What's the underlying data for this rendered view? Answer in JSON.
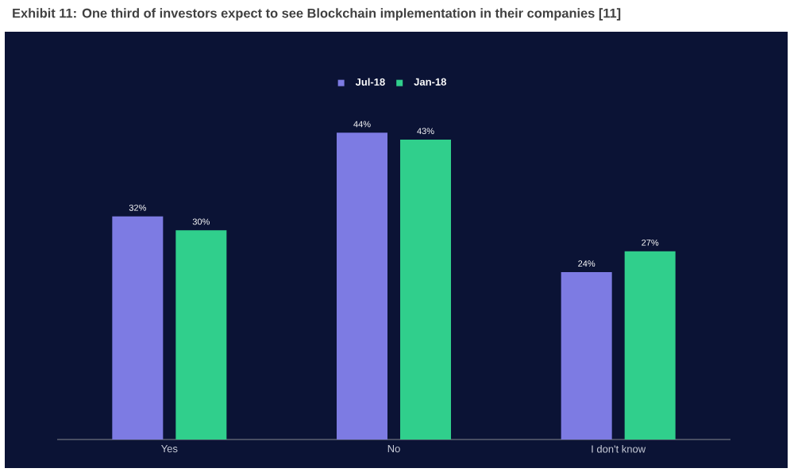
{
  "chart_data": {
    "type": "bar",
    "title": "Exhibit 11: One third of investors expect to see Blockchain implementation in their companies [11]",
    "categories": [
      "Yes",
      "No",
      "I don't know"
    ],
    "series": [
      {
        "name": "Jul-18",
        "color": "#7d7be3",
        "values": [
          32,
          44,
          24
        ],
        "value_labels": [
          "32%",
          "44%",
          "24%"
        ]
      },
      {
        "name": "Jan-18",
        "color": "#30cf8c",
        "values": [
          30,
          43,
          27
        ],
        "value_labels": [
          "30%",
          "43%",
          "27%"
        ]
      }
    ],
    "legend": "top"
  }
}
